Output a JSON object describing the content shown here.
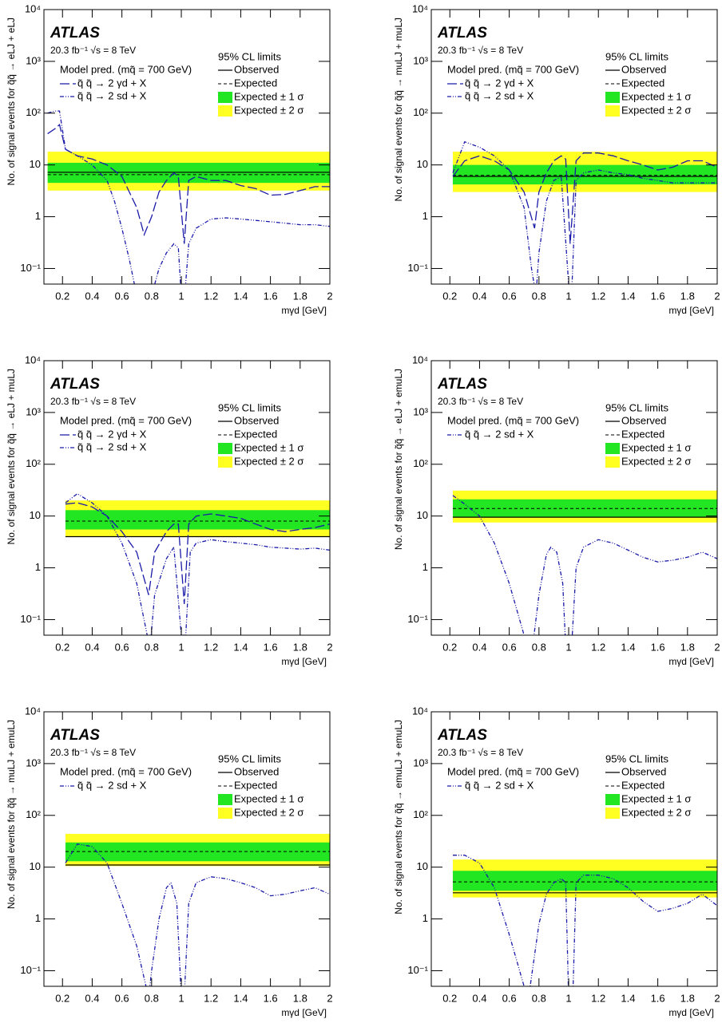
{
  "chart_data": [
    {
      "type": "line",
      "atlas_label": "ATLAS",
      "lumi_label": "20.3 fb⁻¹ √s = 8 TeV",
      "model_label": "Model pred. (mq̃ = 700 GeV)",
      "limits_title": "95% CL limits",
      "ylabel": "No. of signal events for q̃q̃ → eLJ + eLJ",
      "xlabel": "mγd [GeV]",
      "xlim": [
        0.075,
        2
      ],
      "ylim": [
        0.05,
        10000
      ],
      "ylog": true,
      "xticks": [
        0.2,
        0.4,
        0.6,
        0.8,
        1,
        1.2,
        1.4,
        1.6,
        1.8,
        2
      ],
      "yticks": [
        {
          "value": 0.1,
          "label": "10⁻¹"
        },
        1,
        10,
        {
          "value": 100,
          "label": "10²"
        },
        {
          "value": 1000,
          "label": "10³"
        },
        {
          "value": 10000,
          "label": "10⁴"
        }
      ],
      "limits": {
        "x_range": [
          0.1,
          2
        ],
        "observed": {
          "name": "Observed",
          "value": 7.2
        },
        "expected": {
          "name": "Expected",
          "value": 6.5
        },
        "band_1sigma": {
          "name": "Expected ± 1 σ",
          "range": [
            4.5,
            11
          ],
          "color": "#22e622"
        },
        "band_2sigma": {
          "name": "Expected ± 2 σ",
          "range": [
            3.2,
            18
          ],
          "color": "#ffff22"
        }
      },
      "series": [
        {
          "name": "q̃ q̃ → 2 γd + X",
          "color": "#1a1aa8",
          "style": "dashed",
          "x": [
            0.1,
            0.15,
            0.18,
            0.22,
            0.3,
            0.4,
            0.5,
            0.6,
            0.7,
            0.75,
            0.8,
            0.85,
            0.9,
            0.95,
            0.98,
            1.02,
            1.05,
            1.1,
            1.2,
            1.3,
            1.4,
            1.5,
            1.6,
            1.7,
            1.8,
            1.9,
            2.0
          ],
          "values": [
            40,
            50,
            60,
            20,
            15,
            13,
            10,
            6,
            1.5,
            0.45,
            1,
            3,
            5,
            7,
            6,
            0.3,
            5,
            6,
            5,
            5,
            4,
            3.5,
            2.6,
            2.7,
            3.2,
            3.8,
            3.8
          ]
        },
        {
          "name": "q̃ q̃ → 2 sd + X",
          "color": "#1a1aa8",
          "style": "dashdotdot",
          "x": [
            0.1,
            0.15,
            0.18,
            0.22,
            0.3,
            0.4,
            0.5,
            0.55,
            0.6,
            0.65,
            0.7,
            0.8,
            0.85,
            0.9,
            0.95,
            0.98,
            1.01,
            1.05,
            1.1,
            1.2,
            1.3,
            1.4,
            1.5,
            1.6,
            1.7,
            1.8,
            1.9,
            2.0
          ],
          "values": [
            100,
            110,
            110,
            20,
            15,
            10,
            5,
            2,
            0.6,
            0.15,
            0.03,
            0.03,
            0.1,
            0.2,
            0.3,
            0.25,
            0.01,
            0.3,
            0.6,
            0.9,
            0.95,
            0.9,
            0.85,
            0.8,
            0.75,
            0.7,
            0.7,
            0.65
          ]
        }
      ]
    },
    {
      "type": "line",
      "atlas_label": "ATLAS",
      "lumi_label": "20.3 fb⁻¹ √s = 8 TeV",
      "model_label": "Model pred. (mq̃ = 700 GeV)",
      "limits_title": "95% CL limits",
      "ylabel": "No. of signal events for q̃q̃ → muLJ + muLJ",
      "xlabel": "mγd [GeV]",
      "xlim": [
        0.075,
        2
      ],
      "ylim": [
        0.05,
        10000
      ],
      "ylog": true,
      "xticks": [
        0.2,
        0.4,
        0.6,
        0.8,
        1,
        1.2,
        1.4,
        1.6,
        1.8,
        2
      ],
      "yticks": [
        {
          "value": 0.1,
          "label": "10⁻¹"
        },
        1,
        10,
        {
          "value": 100,
          "label": "10²"
        },
        {
          "value": 1000,
          "label": "10³"
        },
        {
          "value": 10000,
          "label": "10⁴"
        }
      ],
      "limits": {
        "x_range": [
          0.22,
          2
        ],
        "observed": {
          "name": "Observed",
          "value": 6
        },
        "expected": {
          "name": "Expected",
          "value": 6.3
        },
        "band_1sigma": {
          "name": "Expected ± 1 σ",
          "range": [
            4.2,
            10
          ],
          "color": "#22e622"
        },
        "band_2sigma": {
          "name": "Expected ± 2 σ",
          "range": [
            3,
            18
          ],
          "color": "#ffff22"
        }
      },
      "series": [
        {
          "name": "q̃ q̃ → 2 γd + X",
          "color": "#1a1aa8",
          "style": "dashed",
          "x": [
            0.22,
            0.3,
            0.4,
            0.5,
            0.6,
            0.7,
            0.77,
            0.8,
            0.85,
            0.9,
            0.95,
            0.98,
            1.01,
            1.05,
            1.1,
            1.2,
            1.3,
            1.4,
            1.5,
            1.6,
            1.7,
            1.8,
            1.9,
            2.0
          ],
          "values": [
            6,
            12,
            15,
            12,
            8,
            3,
            0.6,
            3,
            7,
            12,
            15,
            13,
            0.3,
            12,
            17,
            17,
            15,
            12,
            10,
            8,
            9,
            12,
            12,
            9
          ]
        },
        {
          "name": "q̃ q̃ → 2 sd + X",
          "color": "#1a1aa8",
          "style": "dashdotdot",
          "x": [
            0.22,
            0.3,
            0.4,
            0.5,
            0.6,
            0.7,
            0.75,
            0.78,
            0.8,
            0.85,
            0.9,
            0.95,
            1.0,
            1.02,
            1.05,
            1.1,
            1.2,
            1.3,
            1.4,
            1.5,
            1.6,
            1.7,
            1.8,
            1.9,
            2.0
          ],
          "values": [
            7,
            28,
            22,
            15,
            8,
            1.5,
            0.1,
            0.03,
            0.2,
            2,
            5,
            6,
            0.05,
            0.03,
            5,
            7,
            8,
            7,
            6.5,
            5.5,
            5,
            4.5,
            4.5,
            4.5,
            4.5
          ]
        }
      ]
    },
    {
      "type": "line",
      "atlas_label": "ATLAS",
      "lumi_label": "20.3 fb⁻¹ √s = 8 TeV",
      "model_label": "Model pred. (mq̃ = 700 GeV)",
      "limits_title": "95% CL limits",
      "ylabel": "No. of signal events for q̃q̃ → eLJ + muLJ",
      "xlabel": "mγd [GeV]",
      "xlim": [
        0.075,
        2
      ],
      "ylim": [
        0.05,
        10000
      ],
      "ylog": true,
      "xticks": [
        0.2,
        0.4,
        0.6,
        0.8,
        1,
        1.2,
        1.4,
        1.6,
        1.8,
        2
      ],
      "yticks": [
        {
          "value": 0.1,
          "label": "10⁻¹"
        },
        1,
        10,
        {
          "value": 100,
          "label": "10²"
        },
        {
          "value": 1000,
          "label": "10³"
        },
        {
          "value": 10000,
          "label": "10⁴"
        }
      ],
      "limits": {
        "x_range": [
          0.22,
          2
        ],
        "observed": {
          "name": "Observed",
          "value": 4
        },
        "expected": {
          "name": "Expected",
          "value": 8
        },
        "band_1sigma": {
          "name": "Expected ± 1 σ",
          "range": [
            5.5,
            13
          ],
          "color": "#22e622"
        },
        "band_2sigma": {
          "name": "Expected ± 2 σ",
          "range": [
            4,
            20
          ],
          "color": "#ffff22"
        }
      },
      "series": [
        {
          "name": "q̃ q̃ → 2 γd + X",
          "color": "#1a1aa8",
          "style": "dashed",
          "x": [
            0.22,
            0.3,
            0.4,
            0.5,
            0.6,
            0.7,
            0.78,
            0.82,
            0.9,
            0.95,
            0.98,
            1.02,
            1.05,
            1.1,
            1.2,
            1.3,
            1.4,
            1.5,
            1.6,
            1.7,
            1.8,
            1.9,
            2.0
          ],
          "values": [
            17,
            18,
            15,
            10,
            5,
            2,
            0.3,
            2,
            5,
            7,
            7,
            0.2,
            7,
            10,
            11,
            10,
            9,
            7,
            5.5,
            5,
            5.5,
            6,
            7
          ]
        },
        {
          "name": "q̃ q̃ → 2 sd + X",
          "color": "#1a1aa8",
          "style": "dashdotdot",
          "x": [
            0.22,
            0.3,
            0.4,
            0.5,
            0.6,
            0.7,
            0.77,
            0.79,
            0.82,
            0.9,
            0.95,
            1.0,
            1.03,
            1.06,
            1.1,
            1.2,
            1.3,
            1.4,
            1.5,
            1.6,
            1.7,
            1.8,
            1.9,
            2.0
          ],
          "values": [
            18,
            27,
            18,
            10,
            3,
            0.5,
            0.05,
            0.03,
            0.3,
            1.5,
            2.5,
            0.05,
            0.05,
            2,
            3,
            3.5,
            3.2,
            3.0,
            2.8,
            2.5,
            2.4,
            2.3,
            2.4,
            2.2
          ]
        }
      ]
    },
    {
      "type": "line",
      "atlas_label": "ATLAS",
      "lumi_label": "20.3 fb⁻¹ √s = 8 TeV",
      "model_label": "Model pred. (mq̃ = 700 GeV)",
      "limits_title": "95% CL limits",
      "ylabel": "No. of signal events for q̃q̃ → eLJ + emuLJ",
      "xlabel": "mγd [GeV]",
      "xlim": [
        0.075,
        2
      ],
      "ylim": [
        0.05,
        10000
      ],
      "ylog": true,
      "xticks": [
        0.2,
        0.4,
        0.6,
        0.8,
        1,
        1.2,
        1.4,
        1.6,
        1.8,
        2
      ],
      "yticks": [
        {
          "value": 0.1,
          "label": "10⁻¹"
        },
        1,
        10,
        {
          "value": 100,
          "label": "10²"
        },
        {
          "value": 1000,
          "label": "10³"
        },
        {
          "value": 10000,
          "label": "10⁴"
        }
      ],
      "limits": {
        "x_range": [
          0.22,
          2
        ],
        "observed": {
          "name": "Observed",
          "value": 9.5
        },
        "expected": {
          "name": "Expected",
          "value": 14
        },
        "band_1sigma": {
          "name": "Expected ± 1 σ",
          "range": [
            9.5,
            21
          ],
          "color": "#22e622"
        },
        "band_2sigma": {
          "name": "Expected ± 2 σ",
          "range": [
            7.5,
            31
          ],
          "color": "#ffff22"
        }
      },
      "series": [
        {
          "name": "q̃ q̃ → 2 sd + X",
          "color": "#1a1aa8",
          "style": "dashdotdot",
          "x": [
            0.22,
            0.3,
            0.4,
            0.5,
            0.6,
            0.7,
            0.75,
            0.8,
            0.85,
            0.88,
            0.92,
            0.96,
            0.98,
            1.02,
            1.05,
            1.1,
            1.2,
            1.3,
            1.4,
            1.5,
            1.6,
            1.7,
            1.8,
            1.9,
            2.0
          ],
          "values": [
            25,
            17,
            10,
            3,
            0.5,
            0.05,
            0.02,
            0.3,
            1.8,
            2.5,
            2,
            0.5,
            0.03,
            0.03,
            1,
            2.5,
            3.5,
            3,
            2.2,
            1.6,
            1.3,
            1.4,
            1.6,
            2,
            1.5
          ]
        }
      ]
    },
    {
      "type": "line",
      "atlas_label": "ATLAS",
      "lumi_label": "20.3 fb⁻¹ √s = 8 TeV",
      "model_label": "Model pred. (mq̃ = 700 GeV)",
      "limits_title": "95% CL limits",
      "ylabel": "No. of signal events for q̃q̃ → muLJ + emuLJ",
      "xlabel": "mγd [GeV]",
      "xlim": [
        0.075,
        2
      ],
      "ylim": [
        0.05,
        10000
      ],
      "ylog": true,
      "xticks": [
        0.2,
        0.4,
        0.6,
        0.8,
        1,
        1.2,
        1.4,
        1.6,
        1.8,
        2
      ],
      "yticks": [
        {
          "value": 0.1,
          "label": "10⁻¹"
        },
        1,
        10,
        {
          "value": 100,
          "label": "10²"
        },
        {
          "value": 1000,
          "label": "10³"
        },
        {
          "value": 10000,
          "label": "10⁴"
        }
      ],
      "limits": {
        "x_range": [
          0.22,
          2
        ],
        "observed": {
          "name": "Observed",
          "value": 11
        },
        "expected": {
          "name": "Expected",
          "value": 20
        },
        "band_1sigma": {
          "name": "Expected ± 1 σ",
          "range": [
            13,
            30
          ],
          "color": "#22e622"
        },
        "band_2sigma": {
          "name": "Expected ± 2 σ",
          "range": [
            10.5,
            44
          ],
          "color": "#ffff22"
        }
      },
      "series": [
        {
          "name": "q̃ q̃ → 2 sd + X",
          "color": "#1a1aa8",
          "style": "dashdotdot",
          "x": [
            0.22,
            0.3,
            0.4,
            0.5,
            0.6,
            0.7,
            0.78,
            0.8,
            0.85,
            0.9,
            0.93,
            0.97,
            1.0,
            1.02,
            1.05,
            1.1,
            1.2,
            1.3,
            1.4,
            1.5,
            1.6,
            1.7,
            1.8,
            1.9,
            2.0
          ],
          "values": [
            12,
            28,
            25,
            12,
            2,
            0.3,
            0.03,
            0.1,
            1,
            4,
            5,
            2,
            0.03,
            0.03,
            2,
            5,
            6.5,
            6,
            5,
            4,
            2.8,
            3,
            3.5,
            4,
            3
          ]
        }
      ]
    },
    {
      "type": "line",
      "atlas_label": "ATLAS",
      "lumi_label": "20.3 fb⁻¹ √s = 8 TeV",
      "model_label": "Model pred. (mq̃ = 700 GeV)",
      "limits_title": "95% CL limits",
      "ylabel": "No. of signal events for q̃q̃ → emuLJ + emuLJ",
      "xlabel": "mγd [GeV]",
      "xlim": [
        0.075,
        2
      ],
      "ylim": [
        0.05,
        10000
      ],
      "ylog": true,
      "xticks": [
        0.2,
        0.4,
        0.6,
        0.8,
        1,
        1.2,
        1.4,
        1.6,
        1.8,
        2
      ],
      "yticks": [
        {
          "value": 0.1,
          "label": "10⁻¹"
        },
        1,
        10,
        {
          "value": 100,
          "label": "10²"
        },
        {
          "value": 1000,
          "label": "10³"
        },
        {
          "value": 10000,
          "label": "10⁴"
        }
      ],
      "limits": {
        "x_range": [
          0.22,
          2
        ],
        "observed": {
          "name": "Observed",
          "value": 3.2
        },
        "expected": {
          "name": "Expected",
          "value": 5.2
        },
        "band_1sigma": {
          "name": "Expected ± 1 σ",
          "range": [
            3.5,
            8.5
          ],
          "color": "#22e622"
        },
        "band_2sigma": {
          "name": "Expected ± 2 σ",
          "range": [
            2.6,
            14
          ],
          "color": "#ffff22"
        }
      },
      "series": [
        {
          "name": "q̃ q̃ → 2 sd + X",
          "color": "#1a1aa8",
          "style": "dashdotdot",
          "x": [
            0.22,
            0.3,
            0.4,
            0.5,
            0.6,
            0.7,
            0.73,
            0.8,
            0.85,
            0.9,
            0.95,
            0.98,
            1.0,
            1.03,
            1.05,
            1.1,
            1.2,
            1.3,
            1.4,
            1.5,
            1.6,
            1.7,
            1.8,
            1.9,
            2.0
          ],
          "values": [
            17,
            17,
            12,
            4,
            0.5,
            0.05,
            0.03,
            0.8,
            3,
            5,
            6,
            5,
            0.03,
            0.05,
            5,
            7,
            7,
            6,
            4,
            2.2,
            1.4,
            1.6,
            2,
            3,
            1.8
          ]
        }
      ]
    }
  ]
}
